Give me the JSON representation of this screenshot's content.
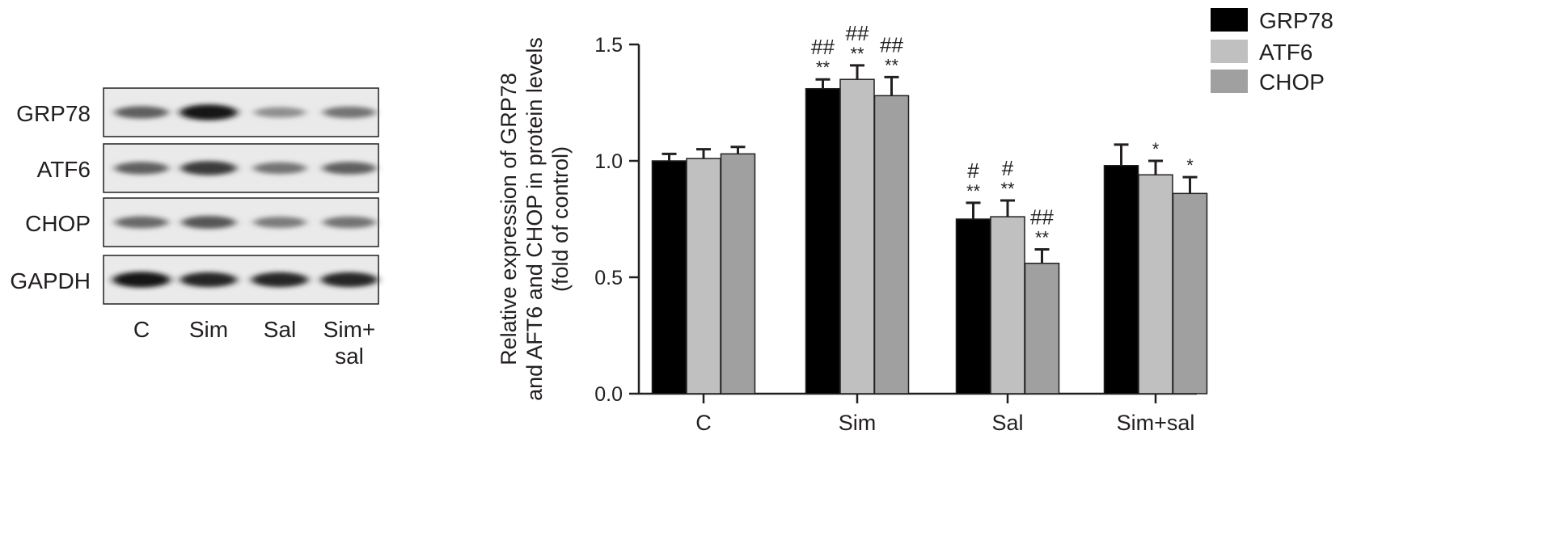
{
  "blot": {
    "rows": [
      {
        "label": "GRP78",
        "intensity": [
          0.55,
          0.95,
          0.3,
          0.45
        ]
      },
      {
        "label": "ATF6",
        "intensity": [
          0.55,
          0.75,
          0.45,
          0.55
        ]
      },
      {
        "label": "CHOP",
        "intensity": [
          0.5,
          0.6,
          0.4,
          0.45
        ]
      },
      {
        "label": "GAPDH",
        "intensity": [
          0.95,
          0.85,
          0.85,
          0.85
        ]
      }
    ],
    "lanes": [
      "C",
      "Sim",
      "Sal",
      "Sim+\nsal"
    ]
  },
  "chart_data": {
    "type": "bar",
    "categories": [
      "C",
      "Sim",
      "Sal",
      "Sim+sal"
    ],
    "ylabel": "Relative expression of GRP78\nand AFT6 and CHOP in protein levels\n(fold of control)",
    "ylim": [
      0,
      1.5
    ],
    "yticks": [
      "0.0",
      "0.5",
      "1.0",
      "1.5"
    ],
    "legend_position": "top-right",
    "series": [
      {
        "name": "GRP78",
        "color": "#000000",
        "values": [
          1.0,
          1.31,
          0.75,
          0.98
        ],
        "errors": [
          0.03,
          0.04,
          0.07,
          0.09
        ],
        "annotations": [
          [
            "",
            ""
          ],
          [
            "##",
            "**"
          ],
          [
            "#",
            "**"
          ],
          [
            "",
            ""
          ]
        ]
      },
      {
        "name": "ATF6",
        "color": "#c0c0c0",
        "values": [
          1.01,
          1.35,
          0.76,
          0.94
        ],
        "errors": [
          0.04,
          0.06,
          0.07,
          0.06
        ],
        "annotations": [
          [
            "",
            ""
          ],
          [
            "##",
            "**"
          ],
          [
            "#",
            "**"
          ],
          [
            "",
            "*"
          ]
        ]
      },
      {
        "name": "CHOP",
        "color": "#a0a0a0",
        "values": [
          1.03,
          1.28,
          0.56,
          0.86
        ],
        "errors": [
          0.03,
          0.08,
          0.06,
          0.07
        ],
        "annotations": [
          [
            "",
            ""
          ],
          [
            "##",
            "**"
          ],
          [
            "##",
            "**"
          ],
          [
            "",
            "*"
          ]
        ]
      }
    ]
  }
}
